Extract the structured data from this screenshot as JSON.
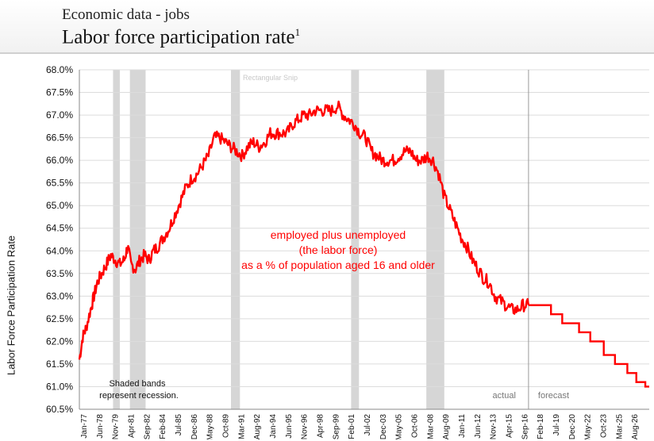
{
  "header": {
    "supertitle": "Economic data - jobs",
    "title": "Labor force participation rate",
    "footnote_mark": "1"
  },
  "chart_data": {
    "type": "line",
    "ylabel": "Labor Force Participation Rate",
    "ylim": [
      60.5,
      68.0
    ],
    "y_ticks": [
      "68.0%",
      "67.5%",
      "67.0%",
      "66.5%",
      "66.0%",
      "65.5%",
      "65.0%",
      "64.5%",
      "64.0%",
      "63.5%",
      "63.0%",
      "62.5%",
      "62.0%",
      "61.5%",
      "61.0%",
      "60.5%"
    ],
    "x_ticks": [
      "Jan-77",
      "Jun-78",
      "Nov-79",
      "Apr-81",
      "Sep-82",
      "Feb-84",
      "Jul-85",
      "Dec-86",
      "May-88",
      "Oct-89",
      "Mar-91",
      "Aug-92",
      "Jan-94",
      "Jun-95",
      "Nov-96",
      "Apr-98",
      "Sep-99",
      "Feb-01",
      "Jul-02",
      "Dec-03",
      "May-05",
      "Oct-06",
      "Mar-08",
      "Aug-09",
      "Jan-11",
      "Jun-12",
      "Nov-13",
      "Apr-15",
      "Sep-16",
      "Feb-18",
      "Jul-19",
      "Dec-20",
      "May-22",
      "Oct-23",
      "Mar-25",
      "Aug-26"
    ],
    "xlim": [
      1977.0,
      2027.75
    ],
    "grid": "horizontal",
    "series": [
      {
        "type": "actual",
        "color": "#ff0000",
        "x": [
          1977.0,
          1977.3,
          1977.6,
          1978.0,
          1978.3,
          1978.6,
          1979.0,
          1979.4,
          1979.8,
          1980.2,
          1980.6,
          1981.0,
          1981.3,
          1981.6,
          1982.0,
          1982.4,
          1982.8,
          1983.2,
          1983.6,
          1984.0,
          1984.5,
          1985.0,
          1985.5,
          1986.0,
          1986.5,
          1987.0,
          1987.5,
          1988.0,
          1988.5,
          1989.0,
          1989.5,
          1990.0,
          1990.5,
          1991.0,
          1991.5,
          1992.0,
          1992.5,
          1993.0,
          1993.5,
          1994.0,
          1994.5,
          1995.0,
          1995.5,
          1996.0,
          1996.5,
          1997.0,
          1997.5,
          1998.0,
          1998.5,
          1999.0,
          1999.5,
          2000.0,
          2000.5,
          2001.0,
          2001.5,
          2002.0,
          2002.5,
          2003.0,
          2003.5,
          2004.0,
          2004.5,
          2005.0,
          2005.5,
          2006.0,
          2006.5,
          2007.0,
          2007.5,
          2008.0,
          2008.5,
          2009.0,
          2009.5,
          2010.0,
          2010.5,
          2011.0,
          2011.5,
          2012.0,
          2012.5,
          2013.0,
          2013.5,
          2014.0,
          2014.5,
          2015.0,
          2015.5,
          2016.0,
          2016.5,
          2017.0
        ],
        "y": [
          61.6,
          62.1,
          62.3,
          62.7,
          63.0,
          63.3,
          63.5,
          63.7,
          63.9,
          63.8,
          63.7,
          63.8,
          64.1,
          63.7,
          63.6,
          63.8,
          63.9,
          63.8,
          64.0,
          64.1,
          64.3,
          64.5,
          64.8,
          65.1,
          65.4,
          65.6,
          65.7,
          65.9,
          66.1,
          66.5,
          66.5,
          66.4,
          66.3,
          66.2,
          66.1,
          66.3,
          66.4,
          66.3,
          66.4,
          66.6,
          66.6,
          66.6,
          66.6,
          66.8,
          66.9,
          67.0,
          67.0,
          67.1,
          67.1,
          67.1,
          67.1,
          67.2,
          67.0,
          66.9,
          66.8,
          66.6,
          66.5,
          66.2,
          66.1,
          66.0,
          66.0,
          66.0,
          66.1,
          66.2,
          66.2,
          66.0,
          66.0,
          66.1,
          66.0,
          65.7,
          65.2,
          64.9,
          64.6,
          64.3,
          64.1,
          63.8,
          63.6,
          63.4,
          63.3,
          63.0,
          62.9,
          62.8,
          62.7,
          62.7,
          62.8,
          62.8
        ],
        "label_lines": [
          "employed plus unemployed",
          "(the labor force)",
          "as a % of population aged 16 and older"
        ]
      },
      {
        "type": "forecast",
        "color": "#ff0000",
        "steps": [
          [
            2017.0,
            62.8
          ],
          [
            2019.0,
            62.6
          ],
          [
            2020.0,
            62.4
          ],
          [
            2021.5,
            62.2
          ],
          [
            2022.5,
            62.0
          ],
          [
            2023.7,
            61.7
          ],
          [
            2024.7,
            61.5
          ],
          [
            2025.8,
            61.3
          ],
          [
            2026.6,
            61.1
          ],
          [
            2027.4,
            61.0
          ]
        ],
        "end_x": 2027.75
      }
    ],
    "recessions": [
      [
        1980.0,
        1980.6
      ],
      [
        1981.5,
        1982.9
      ],
      [
        1990.5,
        1991.3
      ],
      [
        2001.2,
        2001.9
      ],
      [
        2007.9,
        2009.5
      ]
    ],
    "divider_x": 2017.0,
    "annotations": {
      "shaded_note_1": "Shaded bands",
      "shaded_note_2": "represent recession.",
      "actual_label": "actual",
      "forecast_label": "forecast",
      "watermark": "Rectangular Snip"
    }
  }
}
